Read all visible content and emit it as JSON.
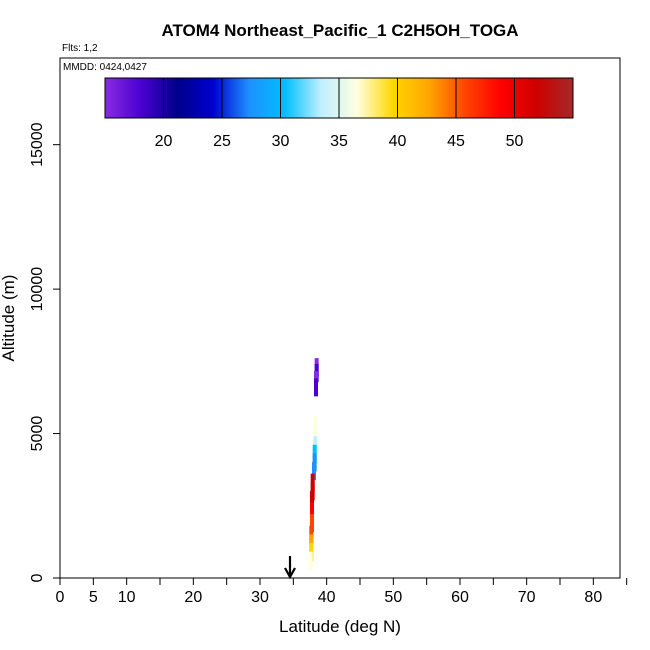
{
  "chart_data": {
    "type": "scatter",
    "title": "ATOM4 Northeast_Pacific_1 C2H5OH_TOGA",
    "flights_label": "Flts: 1,2",
    "dates_label": "MMDD: 0424,0427",
    "xlabel": "Latitude (deg N)",
    "ylabel": "Altitude (m)",
    "xlim": [
      0,
      84
    ],
    "ylim": [
      0,
      18000
    ],
    "x_ticks": [
      0,
      5,
      10,
      20,
      30,
      40,
      50,
      60,
      70,
      80
    ],
    "x_minor_ticks": [
      0,
      5,
      10,
      15,
      20,
      25,
      30,
      35,
      40,
      45,
      50,
      55,
      60,
      65,
      70,
      75,
      80,
      85
    ],
    "y_ticks": [
      0,
      5000,
      10000,
      15000
    ],
    "colorbar": {
      "range": [
        15,
        55
      ],
      "ticks": [
        20,
        25,
        30,
        35,
        40,
        45,
        50
      ],
      "colors": [
        "#8a2be2",
        "#4b00d1",
        "#00008b",
        "#0000cd",
        "#1e90ff",
        "#00bfff",
        "#bfefff",
        "#ffffe0",
        "#ffd700",
        "#ffa500",
        "#ff4500",
        "#ff0000",
        "#cd0000",
        "#a52a2a"
      ]
    },
    "marker_latitude": 34.5,
    "points": [
      {
        "lat": 38.5,
        "alt": 7300,
        "value": 16
      },
      {
        "lat": 38.5,
        "alt": 7100,
        "value": 17
      },
      {
        "lat": 38.4,
        "alt": 6850,
        "value": 16
      },
      {
        "lat": 38.4,
        "alt": 6600,
        "value": 17
      },
      {
        "lat": 38.3,
        "alt": 5300,
        "value": 36
      },
      {
        "lat": 38.3,
        "alt": 5000,
        "value": 35
      },
      {
        "lat": 38.3,
        "alt": 4600,
        "value": 33
      },
      {
        "lat": 38.2,
        "alt": 4300,
        "value": 29
      },
      {
        "lat": 38.2,
        "alt": 4000,
        "value": 28
      },
      {
        "lat": 38.1,
        "alt": 3700,
        "value": 28
      },
      {
        "lat": 37.9,
        "alt": 3300,
        "value": 52
      },
      {
        "lat": 37.9,
        "alt": 3000,
        "value": 52
      },
      {
        "lat": 37.8,
        "alt": 2700,
        "value": 52
      },
      {
        "lat": 37.8,
        "alt": 2300,
        "value": 48
      },
      {
        "lat": 37.8,
        "alt": 1900,
        "value": 46
      },
      {
        "lat": 37.7,
        "alt": 1500,
        "value": 45
      },
      {
        "lat": 37.7,
        "alt": 1200,
        "value": 43
      },
      {
        "lat": 37.7,
        "alt": 900,
        "value": 41
      },
      {
        "lat": 37.6,
        "alt": 600,
        "value": 37
      }
    ]
  }
}
